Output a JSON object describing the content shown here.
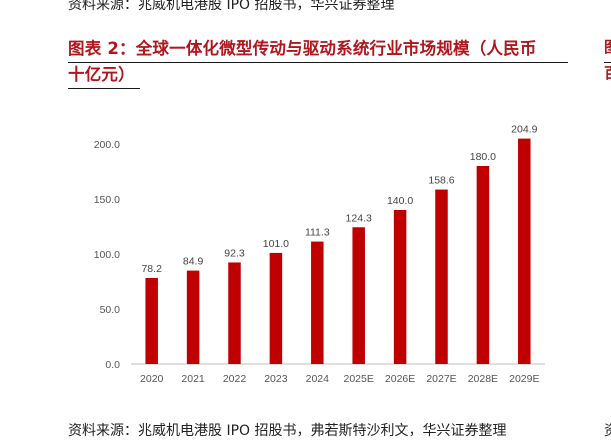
{
  "source_top": "资料来源：兆威机电港股 IPO 招股书，华兴证券整理",
  "figure_title": "图表 2：全球一体化微型传动与驱动系统行业市场规模（人民币十亿元）",
  "figure_title_line1": "图表 2：全球一体化微型传动与驱动系统行业市场规模（人民币",
  "figure_title_line2": "十亿元）",
  "source_bottom": "资料来源：兆威机电港股 IPO 招股书，弗若斯特沙利文，华兴证券整理",
  "right_edge": {
    "title_glyph_1": "图",
    "title_glyph_2": "百",
    "source_glyph": "资"
  },
  "chart_data": {
    "type": "bar",
    "categories": [
      "2020",
      "2021",
      "2022",
      "2023",
      "2024",
      "2025E",
      "2026E",
      "2027E",
      "2028E",
      "2029E"
    ],
    "values": [
      78.2,
      84.9,
      92.3,
      101.0,
      111.3,
      124.3,
      140.0,
      158.6,
      180.0,
      204.9
    ],
    "value_labels": [
      "78.2",
      "84.9",
      "92.3",
      "101.0",
      "111.3",
      "124.3",
      "140.0",
      "158.6",
      "180.0",
      "204.9"
    ],
    "y_ticks": [
      "0.0",
      "50.0",
      "100.0",
      "150.0",
      "200.0"
    ],
    "ylim": [
      0,
      200
    ],
    "bar_color": "#c00000",
    "grid": false
  }
}
